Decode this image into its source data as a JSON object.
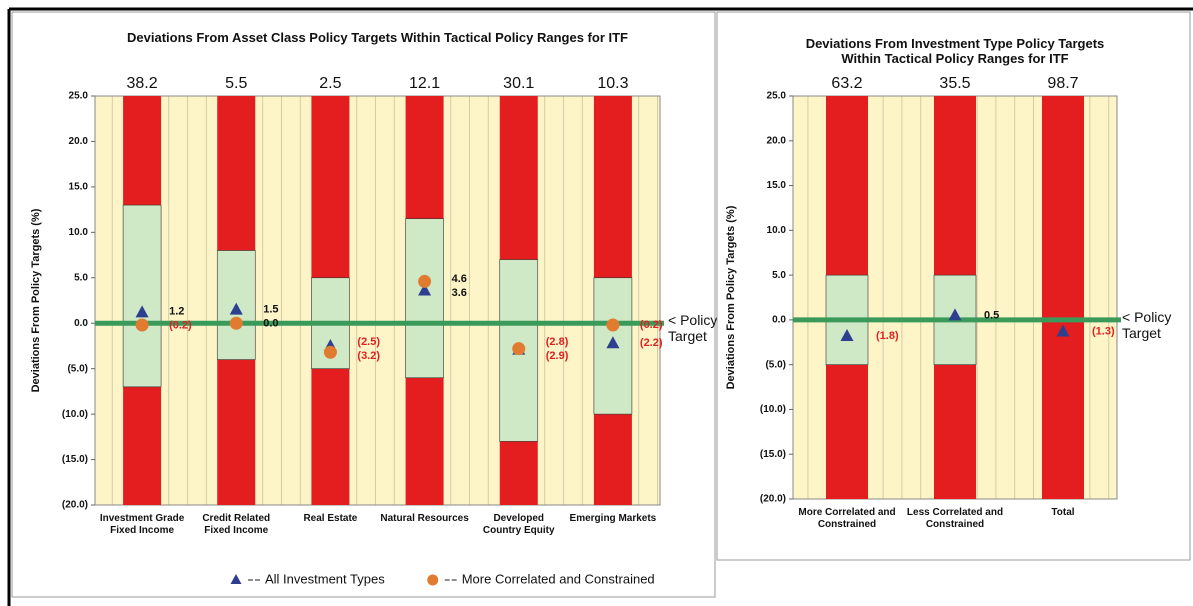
{
  "chart_data": [
    {
      "type": "bar",
      "title": "Deviations From Asset Class Policy Targets Within Tactical Policy Ranges for ITF",
      "ylabel": "Deviations From Policy Targets (%)",
      "categories": [
        "Investment Grade Fixed Income",
        "Credit Related Fixed Income",
        "Real Estate",
        "Natural Resources",
        "Developed Country Equity",
        "Emerging Markets"
      ],
      "top_labels": [
        38.2,
        5.5,
        2.5,
        12.1,
        30.1,
        10.3
      ],
      "range_low": [
        -7,
        -4,
        -5,
        -6,
        -13,
        -10
      ],
      "range_high": [
        13,
        8,
        5,
        11.5,
        7,
        5
      ],
      "range_color": "#cfe8c6",
      "bar_color": "#e41e1e",
      "target_color": "#3a9a5a",
      "annotation": "< Policy Target",
      "ylim": [
        -20,
        25
      ],
      "yticks": [
        {
          "value": 25,
          "label": "25.0"
        },
        {
          "value": 20,
          "label": "20.0"
        },
        {
          "value": 15,
          "label": "15.0"
        },
        {
          "value": 10,
          "label": "10.0"
        },
        {
          "value": 5,
          "label": "5.0"
        },
        {
          "value": 0,
          "label": "0.0"
        },
        {
          "value": -5,
          "label": "(5.0)"
        },
        {
          "value": -10,
          "label": "(10.0)"
        },
        {
          "value": -15,
          "label": "(15.0)"
        },
        {
          "value": -20,
          "label": "(20.0)"
        }
      ],
      "legend": true,
      "series": [
        {
          "name": "All Investment Types",
          "color": "#2e3f8f",
          "marker": "triangle",
          "values": [
            1.2,
            1.5,
            -2.5,
            3.6,
            -2.9,
            -2.2
          ],
          "value_labels": [
            "1.2",
            "1.5",
            "(2.5)",
            "3.6",
            "(2.9)",
            "(2.2)"
          ]
        },
        {
          "name": "More Correlated and Constrained",
          "color": "#e07b30",
          "marker": "circle",
          "values": [
            -0.2,
            0.0,
            -3.2,
            4.6,
            -2.8,
            -0.2
          ],
          "value_labels": [
            "(0.2)",
            "0.0",
            "(3.2)",
            "4.6",
            "(2.8)",
            "(0.2)"
          ]
        }
      ]
    },
    {
      "type": "bar",
      "title": "Deviations From Investment Type Policy Targets Within Tactical Policy Ranges for ITF",
      "ylabel": "Deviations From Policy Targets (%)",
      "categories": [
        "More Correlated and Constrained",
        "Less Correlated and Constrained",
        "Total"
      ],
      "top_labels": [
        63.2,
        35.5,
        98.7
      ],
      "range_low": [
        -5,
        -5,
        null
      ],
      "range_high": [
        5,
        5,
        null
      ],
      "range_color": "#cfe8c6",
      "bar_color": "#e41e1e",
      "target_color": "#3a9a5a",
      "annotation": "< Policy Target",
      "ylim": [
        -20,
        25
      ],
      "yticks": [
        {
          "value": 25,
          "label": "25.0"
        },
        {
          "value": 20,
          "label": "20.0"
        },
        {
          "value": 15,
          "label": "15.0"
        },
        {
          "value": 10,
          "label": "10.0"
        },
        {
          "value": 5,
          "label": "5.0"
        },
        {
          "value": 0,
          "label": "0.0"
        },
        {
          "value": -5,
          "label": "(5.0)"
        },
        {
          "value": -10,
          "label": "(10.0)"
        },
        {
          "value": -15,
          "label": "(15.0)"
        },
        {
          "value": -20,
          "label": "(20.0)"
        }
      ],
      "legend": false,
      "series": [
        {
          "name": "All Investment Types",
          "color": "#2e3f8f",
          "marker": "triangle",
          "values": [
            -1.8,
            0.5,
            -1.3
          ],
          "value_labels": [
            "(1.8)",
            "0.5",
            "(1.3)"
          ]
        }
      ]
    }
  ]
}
